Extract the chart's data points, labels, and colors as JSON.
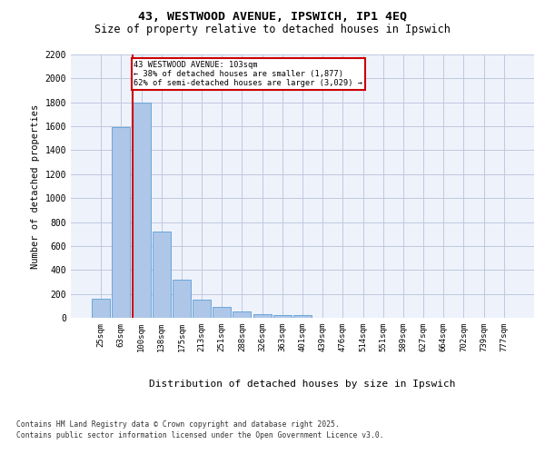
{
  "title_line1": "43, WESTWOOD AVENUE, IPSWICH, IP1 4EQ",
  "title_line2": "Size of property relative to detached houses in Ipswich",
  "xlabel": "Distribution of detached houses by size in Ipswich",
  "ylabel": "Number of detached properties",
  "bar_color": "#aec6e8",
  "bar_edge_color": "#5a9fd4",
  "categories": [
    "25sqm",
    "63sqm",
    "100sqm",
    "138sqm",
    "175sqm",
    "213sqm",
    "251sqm",
    "288sqm",
    "326sqm",
    "363sqm",
    "401sqm",
    "439sqm",
    "476sqm",
    "514sqm",
    "551sqm",
    "589sqm",
    "627sqm",
    "664sqm",
    "702sqm",
    "739sqm",
    "777sqm"
  ],
  "values": [
    160,
    1590,
    1800,
    720,
    320,
    155,
    90,
    50,
    30,
    20,
    20,
    0,
    0,
    0,
    0,
    0,
    0,
    0,
    0,
    0,
    0
  ],
  "ylim": [
    0,
    2200
  ],
  "yticks": [
    0,
    200,
    400,
    600,
    800,
    1000,
    1200,
    1400,
    1600,
    1800,
    2000,
    2200
  ],
  "property_label": "43 WESTWOOD AVENUE: 103sqm",
  "pct_smaller": "38% of detached houses are smaller (1,877)",
  "pct_larger": "62% of semi-detached houses are larger (3,029)",
  "vline_x_index": 2,
  "annotation_box_color": "#cc0000",
  "background_color": "#eef2fb",
  "grid_color": "#c0c8e0",
  "footnote1": "Contains HM Land Registry data © Crown copyright and database right 2025.",
  "footnote2": "Contains public sector information licensed under the Open Government Licence v3.0."
}
